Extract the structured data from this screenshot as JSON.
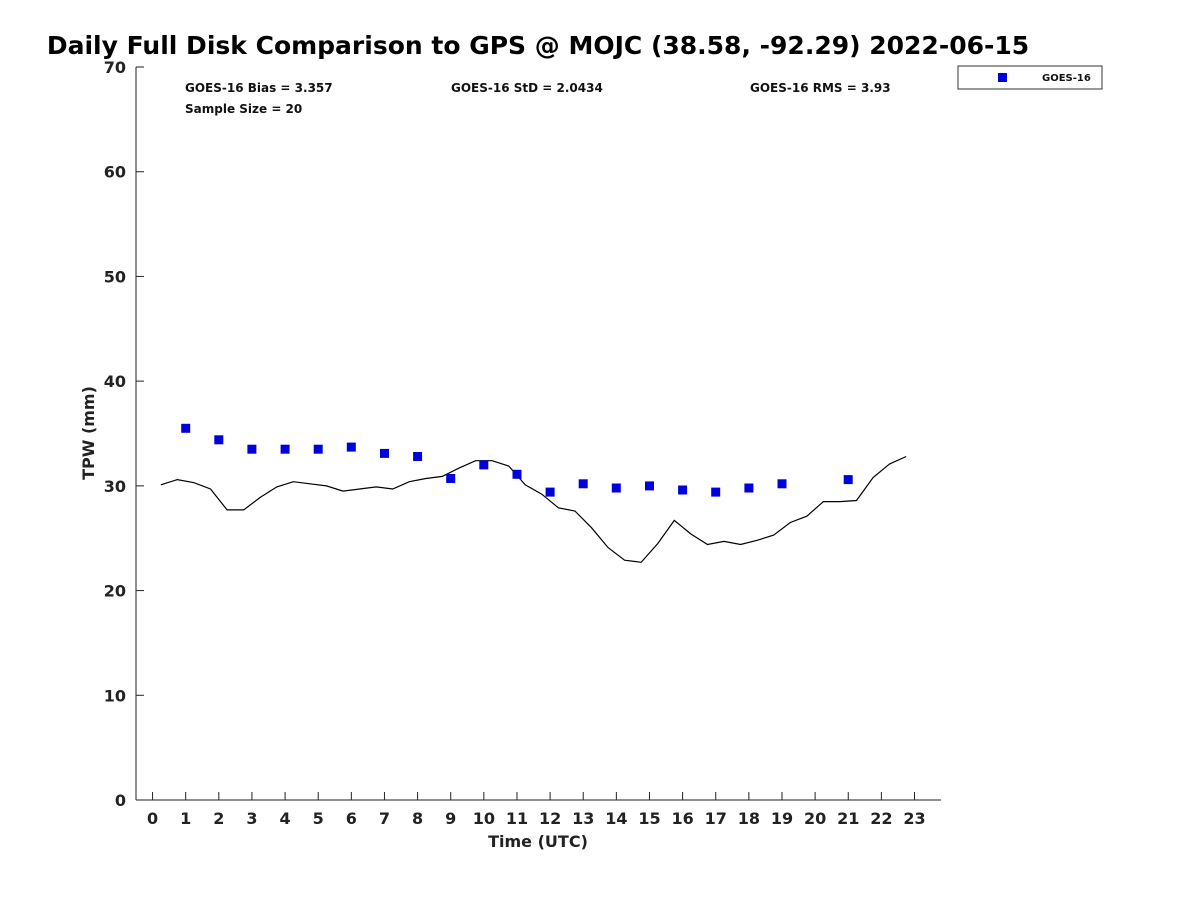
{
  "chart_data": {
    "type": "scatter",
    "title": "Daily Full Disk Comparison to GPS @ MOJC (38.58, -92.29) 2022-06-15",
    "xlabel": "Time (UTC)",
    "ylabel": "TPW (mm)",
    "xlim": [
      -0.5,
      23.8
    ],
    "ylim": [
      0,
      70
    ],
    "x_ticks": [
      0,
      1,
      2,
      3,
      4,
      5,
      6,
      7,
      8,
      9,
      10,
      11,
      12,
      13,
      14,
      15,
      16,
      17,
      18,
      19,
      20,
      21,
      22,
      23
    ],
    "y_ticks": [
      0,
      10,
      20,
      30,
      40,
      50,
      60,
      70
    ],
    "grid": false,
    "legend_position": "top-right",
    "stats": {
      "bias": "GOES-16 Bias = 3.357",
      "std": "GOES-16 StD = 2.0434",
      "rms": "GOES-16 RMS = 3.93",
      "sample_size": "Sample Size = 20"
    },
    "series": [
      {
        "name": "GOES-16",
        "kind": "scatter",
        "color": "#0000dd",
        "marker": "square",
        "x": [
          1,
          2,
          3,
          4,
          5,
          6,
          7,
          8,
          9,
          10,
          11,
          12,
          13,
          14,
          15,
          16,
          17,
          18,
          19,
          21
        ],
        "y": [
          35.5,
          34.4,
          33.5,
          33.5,
          33.5,
          33.7,
          33.1,
          32.8,
          30.7,
          32.0,
          31.1,
          29.4,
          30.2,
          29.8,
          30.0,
          29.6,
          29.4,
          29.8,
          30.2,
          30.6
        ]
      },
      {
        "kind": "line",
        "color": "#000000",
        "x": [
          0.25,
          0.75,
          1.25,
          1.75,
          2.25,
          2.75,
          3.25,
          3.75,
          4.25,
          4.75,
          5.25,
          5.75,
          6.25,
          6.75,
          7.25,
          7.75,
          8.25,
          8.75,
          9.25,
          9.75,
          10.25,
          10.75,
          11.25,
          11.75,
          12.25,
          12.75,
          13.25,
          13.75,
          14.25,
          14.75,
          15.25,
          15.75,
          16.25,
          16.75,
          17.25,
          17.75,
          18.25,
          18.75,
          19.25,
          19.75,
          20.25,
          20.75,
          21.25,
          21.75,
          22.25,
          22.75
        ],
        "y": [
          30.1,
          30.6,
          30.3,
          29.7,
          27.7,
          27.7,
          28.9,
          29.9,
          30.4,
          30.2,
          30.0,
          29.5,
          29.7,
          29.9,
          29.7,
          30.4,
          30.7,
          30.9,
          31.7,
          32.4,
          32.4,
          31.9,
          30.1,
          29.2,
          27.9,
          27.6,
          26.0,
          24.1,
          22.9,
          22.7,
          24.5,
          26.7,
          25.4,
          24.4,
          24.7,
          24.4,
          24.8,
          25.3,
          26.5,
          27.1,
          28.5,
          28.5,
          28.6,
          30.8,
          32.1,
          32.8
        ]
      }
    ]
  }
}
